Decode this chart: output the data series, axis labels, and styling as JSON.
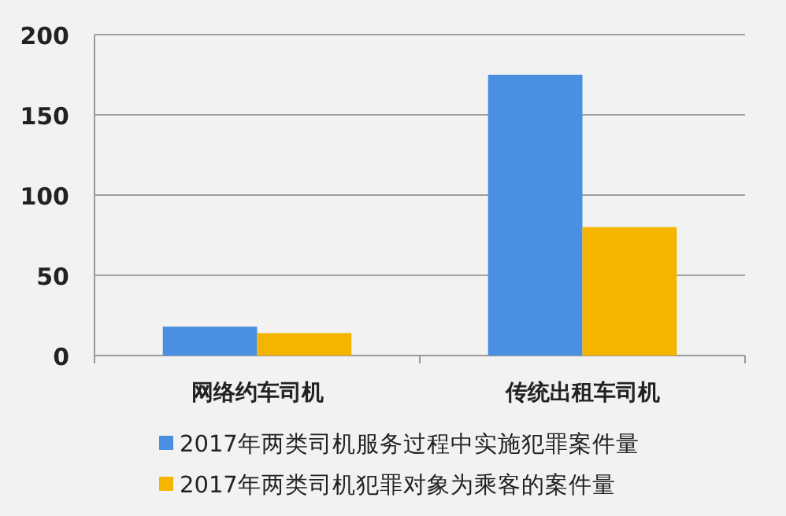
{
  "chart_data": {
    "type": "bar",
    "categories": [
      "网络约车司机",
      "传统出租车司机"
    ],
    "series": [
      {
        "name": "2017年两类司机服务过程中实施犯罪案件量",
        "color": "#4a90e2",
        "values": [
          18,
          175
        ]
      },
      {
        "name": "2017年两类司机犯罪对象为乘客的案件量",
        "color": "#f5b400",
        "values": [
          14,
          80
        ]
      }
    ],
    "ylim": [
      0,
      200
    ],
    "yticks": [
      0,
      50,
      100,
      150,
      200
    ],
    "grid": "y",
    "legend": "bottom"
  }
}
